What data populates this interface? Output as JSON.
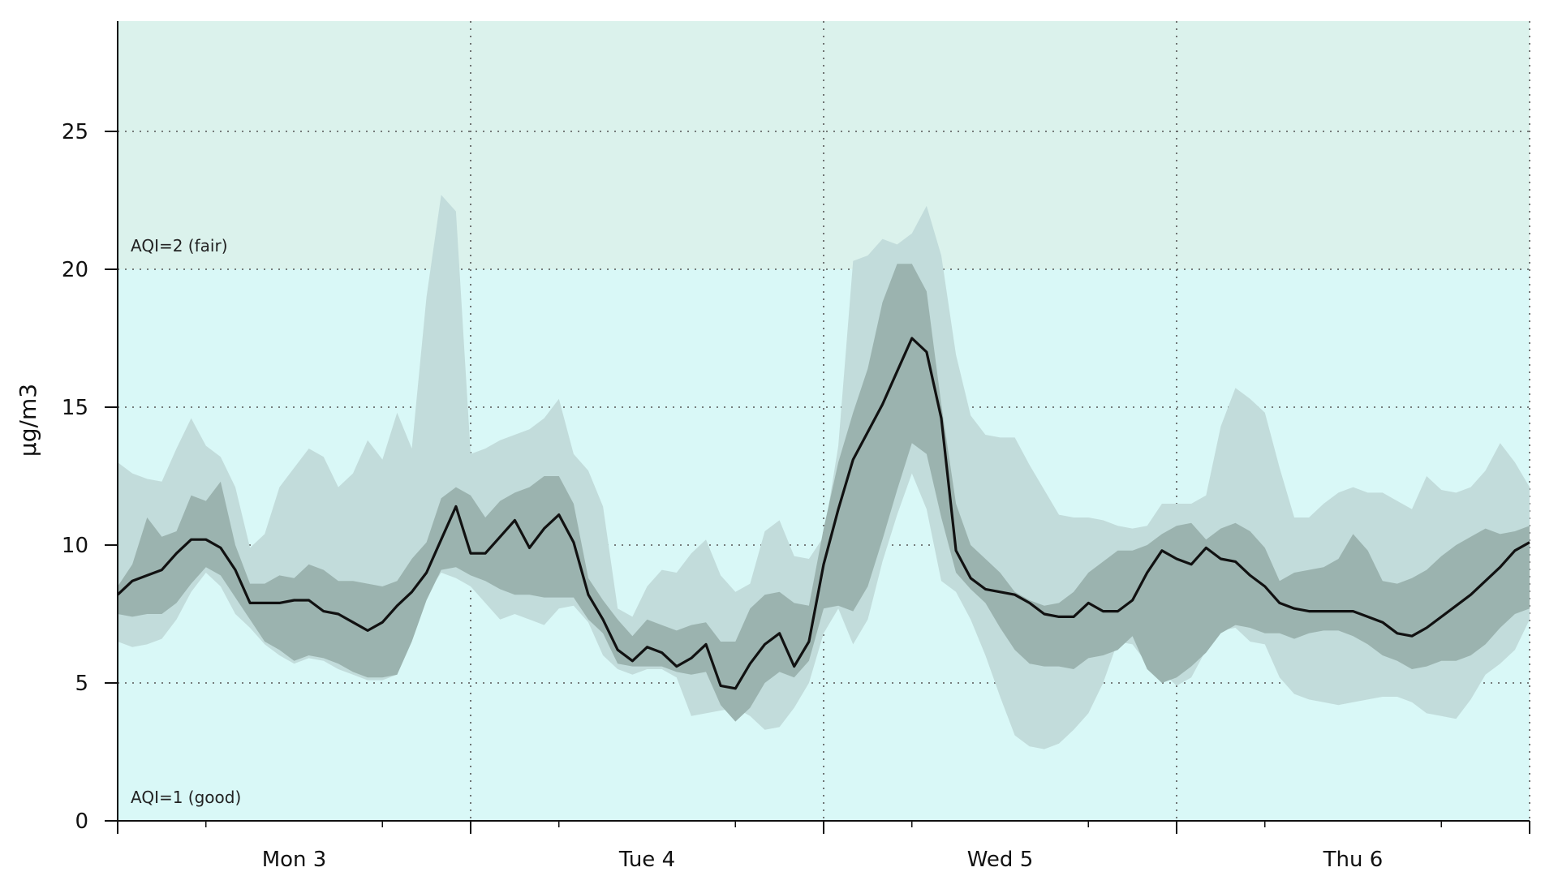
{
  "chart_data": {
    "type": "area",
    "ylabel": "µg/m3",
    "ylim": [
      0,
      29
    ],
    "yticks": [
      0,
      5,
      10,
      15,
      20,
      25
    ],
    "xlim": [
      0,
      8
    ],
    "x_major_ticks": [
      1,
      3,
      5,
      7
    ],
    "x_labels": [
      {
        "x": 1,
        "label": "Mon 3"
      },
      {
        "x": 3,
        "label": "Tue 4"
      },
      {
        "x": 5,
        "label": "Wed 5"
      },
      {
        "x": 7,
        "label": "Thu 6"
      }
    ],
    "x_minor_ticks": [
      0.5,
      1.5,
      2.5,
      3.5,
      4.5,
      5.5,
      6.5,
      7.5
    ],
    "x_unit": "days from start of Mon 3 window (midnight-anchored, tick=12h)",
    "grid": true,
    "aqi_bands": [
      {
        "label": "AQI=1 (good)",
        "from": 0,
        "to": 20,
        "color": "#d9f8f7"
      },
      {
        "label": "AQI=2 (fair)",
        "from": 20,
        "to": 29,
        "color": "#dbf2ec"
      }
    ],
    "x": [
      0,
      0.0833,
      0.1667,
      0.25,
      0.3333,
      0.4167,
      0.5,
      0.5833,
      0.6667,
      0.75,
      0.8333,
      0.9167,
      1.0,
      1.0833,
      1.1667,
      1.25,
      1.3333,
      1.4167,
      1.5,
      1.5833,
      1.6667,
      1.75,
      1.8333,
      1.9167,
      2.0,
      2.0833,
      2.1667,
      2.25,
      2.3333,
      2.4167,
      2.5,
      2.5833,
      2.6667,
      2.75,
      2.8333,
      2.9167,
      3.0,
      3.0833,
      3.1667,
      3.25,
      3.3333,
      3.4167,
      3.5,
      3.5833,
      3.6667,
      3.75,
      3.8333,
      3.9167,
      4.0,
      4.0833,
      4.1667,
      4.25,
      4.3333,
      4.4167,
      4.5,
      4.5833,
      4.6667,
      4.75,
      4.8333,
      4.9167,
      5.0,
      5.0833,
      5.1667,
      5.25,
      5.3333,
      5.4167,
      5.5,
      5.5833,
      5.6667,
      5.75,
      5.8333,
      5.9167,
      6.0,
      6.0833,
      6.1667,
      6.25,
      6.3333,
      6.4167,
      6.5,
      6.5833,
      6.6667,
      6.75,
      6.8333,
      6.9167,
      7.0,
      7.0833,
      7.1667,
      7.25,
      7.3333,
      7.4167,
      7.5,
      7.5833,
      7.6667,
      7.75,
      7.8333,
      7.9167,
      8.0
    ],
    "series": [
      {
        "name": "median",
        "values": [
          8.2,
          8.7,
          8.9,
          9.1,
          9.7,
          10.2,
          10.2,
          9.9,
          9.1,
          7.9,
          7.9,
          7.9,
          8.0,
          8.0,
          7.6,
          7.5,
          7.2,
          6.9,
          7.2,
          7.8,
          8.3,
          9.0,
          10.2,
          11.4,
          9.7,
          9.7,
          10.3,
          10.9,
          9.9,
          10.6,
          11.1,
          10.1,
          8.2,
          7.3,
          6.2,
          5.8,
          6.3,
          6.1,
          5.6,
          5.9,
          6.4,
          4.9,
          4.8,
          5.7,
          6.4,
          6.8,
          5.6,
          6.5,
          9.3,
          11.3,
          13.1,
          14.1,
          15.1,
          16.3,
          17.5,
          17.0,
          14.6,
          9.8,
          8.8,
          8.4,
          8.3,
          8.2,
          7.9,
          7.5,
          7.4,
          7.4,
          7.9,
          7.6,
          7.6,
          8.0,
          9.0,
          9.8,
          9.5,
          9.3,
          9.9,
          9.5,
          9.4,
          8.9,
          8.5,
          7.9,
          7.7,
          7.6,
          7.6,
          7.6,
          7.6,
          7.4,
          7.2,
          6.8,
          6.7,
          7.0,
          7.4,
          7.8,
          8.2,
          8.7,
          9.2,
          9.8,
          10.1
        ]
      },
      {
        "name": "inner_low",
        "values": [
          7.5,
          7.4,
          7.5,
          7.5,
          7.9,
          8.6,
          9.2,
          8.9,
          8.1,
          7.3,
          6.5,
          6.2,
          5.8,
          6.0,
          5.9,
          5.7,
          5.4,
          5.2,
          5.2,
          5.3,
          6.5,
          8.0,
          9.1,
          9.2,
          8.9,
          8.7,
          8.4,
          8.2,
          8.2,
          8.1,
          8.1,
          8.1,
          7.3,
          6.8,
          5.7,
          5.6,
          5.6,
          5.6,
          5.4,
          5.3,
          5.4,
          4.2,
          3.6,
          4.1,
          5.0,
          5.4,
          5.2,
          5.8,
          7.7,
          7.8,
          7.6,
          8.5,
          10.2,
          12.0,
          13.7,
          13.3,
          11.0,
          9.0,
          8.4,
          7.9,
          7.0,
          6.2,
          5.7,
          5.6,
          5.6,
          5.5,
          5.9,
          6.0,
          6.2,
          6.7,
          5.5,
          5.0,
          5.2,
          5.6,
          6.1,
          6.8,
          7.1,
          7.0,
          6.8,
          6.8,
          6.6,
          6.8,
          6.9,
          6.9,
          6.7,
          6.4,
          6.0,
          5.8,
          5.5,
          5.6,
          5.8,
          5.8,
          6.0,
          6.4,
          7.0,
          7.5,
          7.7
        ]
      },
      {
        "name": "inner_high",
        "values": [
          8.5,
          9.3,
          11.0,
          10.3,
          10.5,
          11.8,
          11.6,
          12.3,
          10.0,
          8.6,
          8.6,
          8.9,
          8.8,
          9.3,
          9.1,
          8.7,
          8.7,
          8.6,
          8.5,
          8.7,
          9.5,
          10.1,
          11.7,
          12.1,
          11.8,
          11.0,
          11.6,
          11.9,
          12.1,
          12.5,
          12.5,
          11.5,
          8.8,
          8.0,
          7.3,
          6.7,
          7.3,
          7.1,
          6.9,
          7.1,
          7.2,
          6.5,
          6.5,
          7.7,
          8.2,
          8.3,
          7.9,
          7.8,
          10.6,
          13.0,
          14.8,
          16.4,
          18.8,
          20.2,
          20.2,
          19.2,
          15.1,
          11.5,
          10.0,
          9.5,
          9.0,
          8.3,
          8.0,
          7.8,
          7.9,
          8.3,
          9.0,
          9.4,
          9.8,
          9.8,
          10.0,
          10.4,
          10.7,
          10.8,
          10.2,
          10.6,
          10.8,
          10.5,
          9.9,
          8.7,
          9.0,
          9.1,
          9.2,
          9.5,
          10.4,
          9.8,
          8.7,
          8.6,
          8.8,
          9.1,
          9.6,
          10.0,
          10.3,
          10.6,
          10.4,
          10.5,
          10.7
        ]
      },
      {
        "name": "outer_low",
        "values": [
          6.5,
          6.3,
          6.4,
          6.6,
          7.3,
          8.3,
          9.0,
          8.5,
          7.5,
          7.0,
          6.4,
          6.0,
          5.7,
          5.9,
          5.8,
          5.5,
          5.3,
          5.1,
          5.1,
          5.3,
          6.6,
          8.2,
          9.0,
          8.8,
          8.5,
          7.9,
          7.3,
          7.5,
          7.3,
          7.1,
          7.7,
          7.8,
          7.2,
          6.0,
          5.5,
          5.3,
          5.5,
          5.5,
          5.2,
          3.8,
          3.9,
          4.0,
          4.1,
          3.8,
          3.3,
          3.4,
          4.1,
          5.0,
          6.8,
          7.7,
          6.4,
          7.3,
          9.4,
          11.1,
          12.6,
          11.3,
          8.7,
          8.3,
          7.3,
          6.0,
          4.5,
          3.1,
          2.7,
          2.6,
          2.8,
          3.3,
          3.9,
          5.0,
          6.5,
          6.4,
          5.7,
          5.4,
          4.9,
          5.2,
          6.2,
          6.9,
          7.0,
          6.5,
          6.4,
          5.2,
          4.6,
          4.4,
          4.3,
          4.2,
          4.3,
          4.4,
          4.5,
          4.5,
          4.3,
          3.9,
          3.8,
          3.7,
          4.4,
          5.3,
          5.7,
          6.2,
          7.3
        ]
      },
      {
        "name": "outer_high",
        "values": [
          13.0,
          12.6,
          12.4,
          12.3,
          13.5,
          14.6,
          13.6,
          13.2,
          12.1,
          9.9,
          10.4,
          12.1,
          12.8,
          13.5,
          13.2,
          12.1,
          12.6,
          13.8,
          13.1,
          14.8,
          13.5,
          19.0,
          22.7,
          22.1,
          13.3,
          13.5,
          13.8,
          14.0,
          14.2,
          14.6,
          15.3,
          13.3,
          12.7,
          11.4,
          7.7,
          7.4,
          8.5,
          9.1,
          9.0,
          9.7,
          10.2,
          8.9,
          8.3,
          8.6,
          10.5,
          10.9,
          9.6,
          9.5,
          10.3,
          13.6,
          20.3,
          20.5,
          21.1,
          20.9,
          21.3,
          22.3,
          20.5,
          16.9,
          14.7,
          14.0,
          13.9,
          13.9,
          12.9,
          12.0,
          11.1,
          11.0,
          11.0,
          10.9,
          10.7,
          10.6,
          10.7,
          11.5,
          11.5,
          11.5,
          11.8,
          14.3,
          15.7,
          15.3,
          14.8,
          12.8,
          11.0,
          11.0,
          11.5,
          11.9,
          12.1,
          11.9,
          11.9,
          11.6,
          11.3,
          12.5,
          12.0,
          11.9,
          12.1,
          12.7,
          13.7,
          13.0,
          12.1
        ]
      }
    ]
  }
}
